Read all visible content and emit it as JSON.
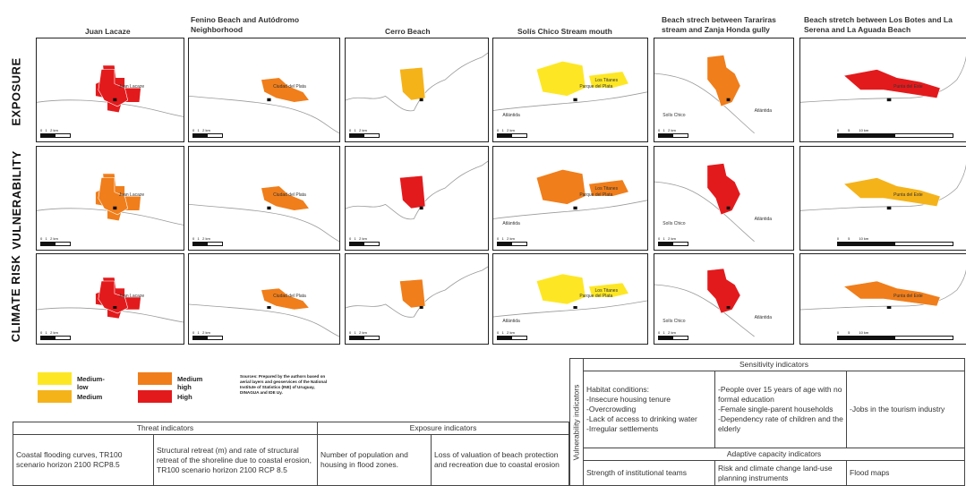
{
  "columns": [
    "Juan Lacaze",
    "Fenino Beach and Autódromo Neighborhood",
    "Cerro Beach",
    "Solís Chico Stream mouth",
    "Beach strech between Tarariras stream and Zanja Honda gully",
    "Beach stretch between Los Botes and La Serena and La Aguada Beach"
  ],
  "rows": [
    "EXPOSURE",
    "VULNERABILITY",
    "CLIMATE RISK"
  ],
  "levels": [
    "Medium-low",
    "Medium",
    "Medium high",
    "High"
  ],
  "colors": {
    "Medium-low": "#fde725",
    "Medium": "#f5b31a",
    "Medium high": "#f07e1b",
    "High": "#e31a1c",
    "line": "#9a9a9a"
  },
  "map_levels": [
    [
      "High",
      "Medium high",
      "Medium",
      "Medium-low",
      "Medium high",
      "High"
    ],
    [
      "Medium high",
      "Medium high",
      "High",
      "Medium high",
      "High",
      "Medium"
    ],
    [
      "High",
      "Medium high",
      "Medium high",
      "Medium-low",
      "High",
      "Medium high"
    ]
  ],
  "map_labels": [
    [
      "Juan Lacaze",
      "Ciudad del Plata",
      "",
      "Parque del Plata",
      "Atlántida",
      "Punta del Este"
    ],
    [
      "Juan Lacaze",
      "Ciudad del Plata",
      "",
      "Parque del Plata",
      "Atlántida",
      "Punta del Este"
    ],
    [
      "Juan Lacaze",
      "Ciudad del Plata",
      "",
      "Parque del Plata",
      "Atlántida",
      "Punta del Este"
    ]
  ],
  "map_labels_2": [
    "",
    "",
    "",
    "Atlántida",
    "Solís Chico",
    ""
  ],
  "map_labels_3": [
    "",
    "",
    "",
    "Los Titanes",
    "",
    ""
  ],
  "scale_bars": [
    "0   1   2 km",
    "0   1   2 km",
    "0   1   2 km",
    "0   1   2 km",
    "0   1   2 km",
    "0         5         10 km"
  ],
  "legend": {
    "medium_low": "Medium-low",
    "medium": "Medium",
    "medium_high": "Medium high",
    "high": "High",
    "source": "Sources: Prepared by the authors based on aerial layers and geoservices of the National Institute of Statistics (INE) of Uruguay, DINAGUA and IDE Uy."
  },
  "threat_table": {
    "threat_header": "Threat indicators",
    "exposure_header": "Exposure indicators",
    "cells": [
      "Coastal flooding curves, TR100 scenario horizon 2100 RCP8.5",
      "Structural retreat (m) and rate of structural retreat of the shoreline due to coastal erosion, TR100 scenario horizon 2100 RCP 8.5",
      "Number of population and housing in flood zones.",
      "Loss of valuation of beach protection and recreation due to coastal erosion"
    ]
  },
  "vuln_table": {
    "side_label": "Vulnerability indicators",
    "sensitivity_header": "Sensitivity indicators",
    "sensitivity_cells": [
      "Habitat conditions:\n-Insecure housing tenure\n-Overcrowding\n-Lack of access to drinking water\n-Irregular settlements",
      "-People over 15 years of age with no formal education\n-Female single-parent households\n-Dependency rate of children and the elderly",
      "-Jobs in the tourism industry"
    ],
    "adaptive_header": "Adaptive capacity indicators",
    "adaptive_cells": [
      "Strength of institutional teams",
      "Risk and climate change land-use planning instruments",
      "Flood maps"
    ]
  }
}
